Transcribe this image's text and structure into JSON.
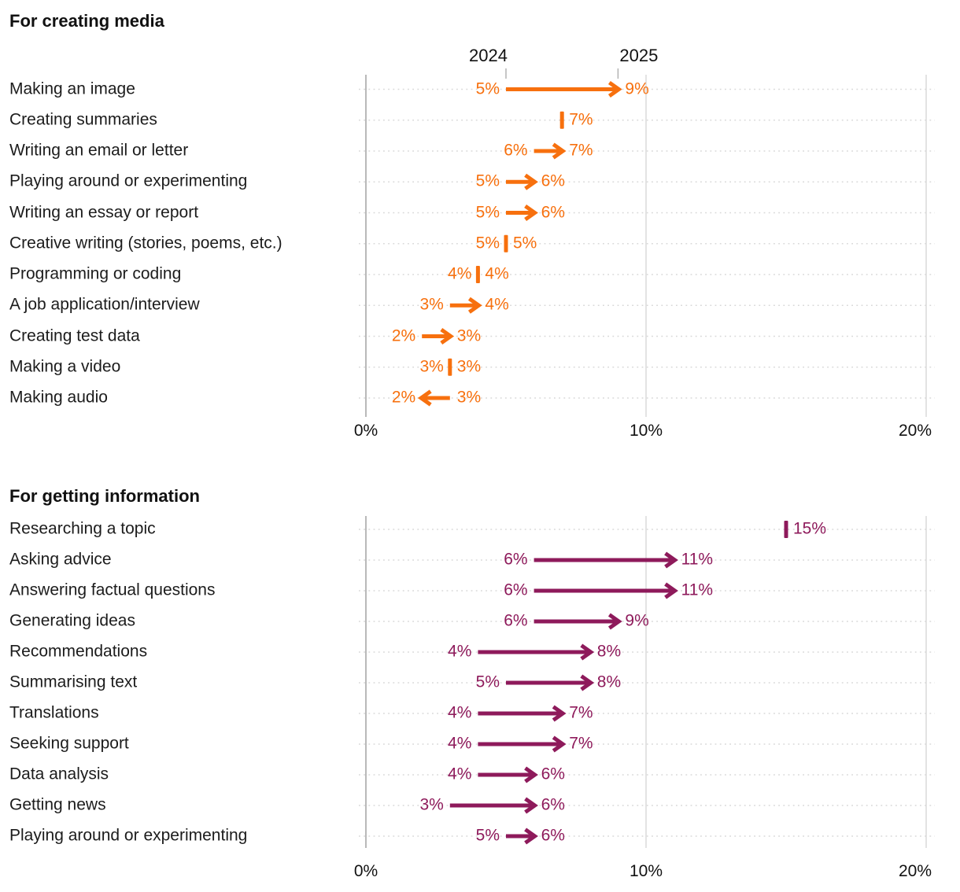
{
  "styles": {
    "background": "#ffffff",
    "axis_line_color": "#b9b9b9",
    "grid_line_color": "#e3e3e3",
    "leader_dot_color": "#d8d8d8",
    "text_color": "#1c1c1c",
    "year_tick_color": "#b3b3b3"
  },
  "chart_data": [
    {
      "type": "arrow",
      "title": "For creating media",
      "accent_color": "#F7700E",
      "column_headers": [
        "2024",
        "2025"
      ],
      "unit": "%",
      "x_ticks": [
        "0%",
        "10%",
        "20%"
      ],
      "x_tick_values": [
        0,
        10,
        20
      ],
      "xlim": [
        0,
        20
      ],
      "grid": "vertical gridlines at ticks, dotted row leader lines",
      "categories": [
        "Making an image",
        "Creating summaries",
        "Writing an email or letter",
        "Playing around or experimenting",
        "Writing an essay or report",
        "Creative writing (stories, poems, etc.)",
        "Programming or coding",
        "A job application/interview",
        "Creating test data",
        "Making a video",
        "Making audio"
      ],
      "series": [
        {
          "name": "2024",
          "values": [
            5,
            null,
            6,
            5,
            5,
            5,
            4,
            3,
            2,
            3,
            3
          ]
        },
        {
          "name": "2025",
          "values": [
            9,
            7,
            7,
            6,
            6,
            5,
            4,
            4,
            3,
            3,
            2
          ]
        }
      ],
      "show_year_header": true
    },
    {
      "type": "arrow",
      "title": "For getting information",
      "accent_color": "#8E1A5B",
      "unit": "%",
      "x_ticks": [
        "0%",
        "10%",
        "20%"
      ],
      "x_tick_values": [
        0,
        10,
        20
      ],
      "xlim": [
        0,
        20
      ],
      "grid": "vertical gridlines at ticks, dotted row leader lines",
      "categories": [
        "Researching a topic",
        "Asking advice",
        "Answering factual questions",
        "Generating ideas",
        "Recommendations",
        "Summarising text",
        "Translations",
        "Seeking support",
        "Data analysis",
        "Getting news",
        "Playing around or experimenting"
      ],
      "series": [
        {
          "name": "2024",
          "values": [
            null,
            6,
            6,
            6,
            4,
            5,
            4,
            4,
            4,
            3,
            5
          ]
        },
        {
          "name": "2025",
          "values": [
            15,
            11,
            11,
            9,
            8,
            8,
            7,
            7,
            6,
            6,
            6
          ]
        }
      ],
      "show_year_header": false
    }
  ]
}
